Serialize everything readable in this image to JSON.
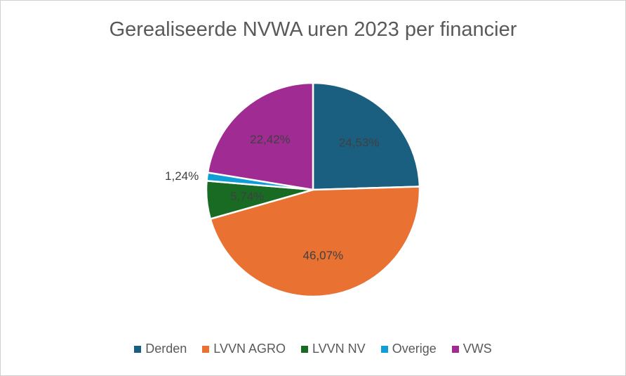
{
  "chart_data": {
    "type": "pie",
    "title": "Gerealiseerde NVWA uren 2023 per financier",
    "categories": [
      "Derden",
      "LVVN AGRO",
      "LVVN NV",
      "Overige",
      "VWS"
    ],
    "values": [
      24.53,
      46.07,
      5.74,
      1.24,
      22.42
    ],
    "labels": [
      "24,53%",
      "46,07%",
      "5,74%",
      "1,24%",
      "22,42%"
    ],
    "colors": [
      "#1a5f7f",
      "#e97132",
      "#196b24",
      "#0f9ed5",
      "#a02b93"
    ],
    "legend": "bottom"
  }
}
